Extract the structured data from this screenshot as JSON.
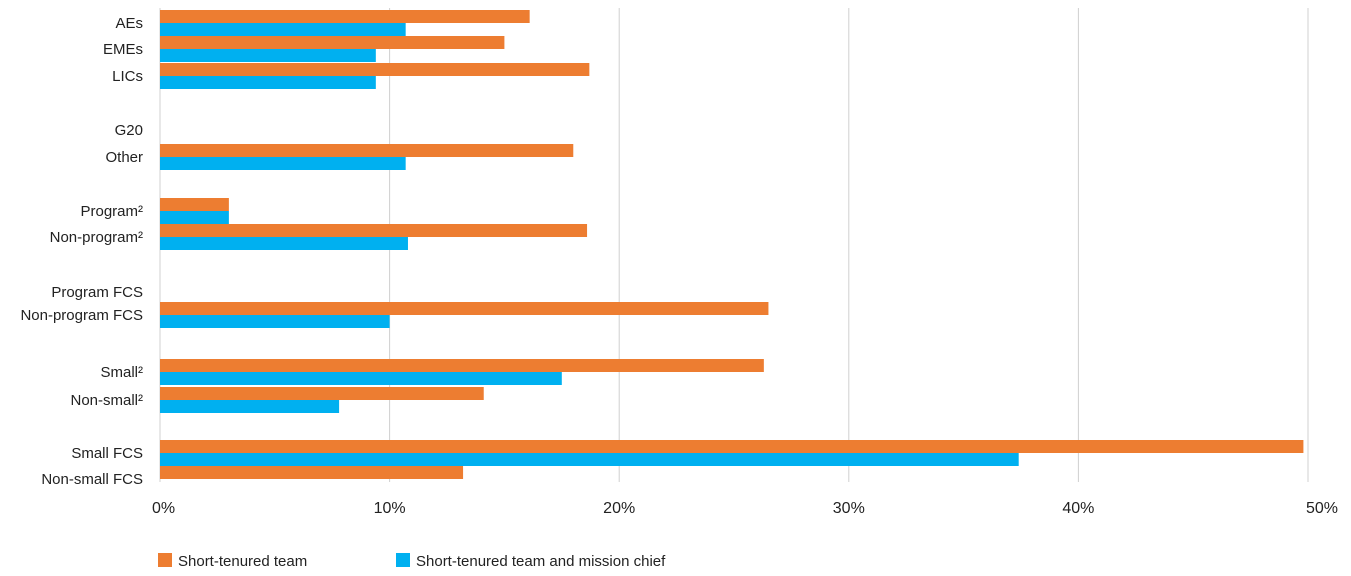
{
  "chart_data": {
    "type": "bar",
    "orientation": "horizontal",
    "categories": [
      "AEs",
      "EMEs",
      "LICs",
      "G20",
      "Other",
      "Program²",
      "Non-program²",
      "Program FCS",
      "Non-program FCS",
      "Small²",
      "Non-small²",
      "Small FCS",
      "Non-small FCS"
    ],
    "series": [
      {
        "name": "Short-tenured team",
        "color": "#ED7D31",
        "values": [
          16.1,
          15.0,
          18.7,
          null,
          18.0,
          3.0,
          18.6,
          null,
          26.5,
          26.3,
          14.1,
          49.8,
          13.2
        ]
      },
      {
        "name": "Short-tenured team and mission chief",
        "color": "#00B0F0",
        "values": [
          10.7,
          9.4,
          9.4,
          null,
          10.7,
          3.0,
          10.8,
          null,
          10.0,
          17.5,
          7.8,
          37.4,
          null
        ]
      }
    ],
    "x_ticks": [
      "0%",
      "10%",
      "20%",
      "30%",
      "40%",
      "50%"
    ],
    "xlim": [
      0,
      50
    ],
    "x_unit": "%",
    "grid": "vertical",
    "legend_position": "bottom-left",
    "title": "",
    "xlabel": "",
    "ylabel": ""
  }
}
